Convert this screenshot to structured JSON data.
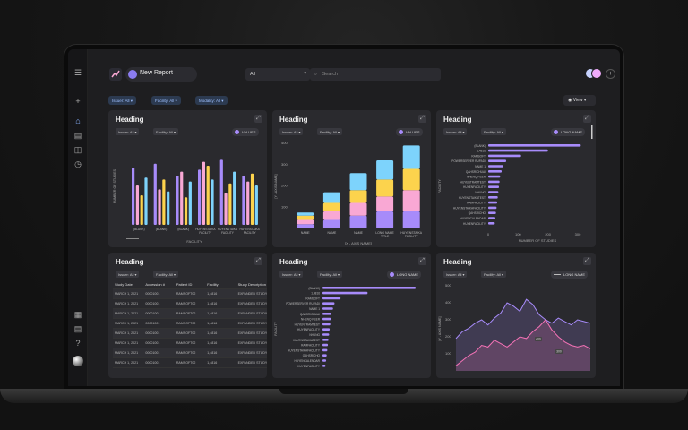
{
  "topbar": {
    "report_title": "New Report",
    "select_value": "All",
    "search_placeholder": "Search"
  },
  "filters": {
    "issuer": "Issuer: All",
    "facility": "Facility: All",
    "modality": "Modality: All",
    "view_label": "View"
  },
  "cards": [
    {
      "heading": "Heading",
      "issuer": "Issuer: All",
      "facility": "Facility: All",
      "legend": "VALUES"
    },
    {
      "heading": "Heading",
      "issuer": "Issuer: All",
      "facility": "Facility: All",
      "legend": "VALUES"
    },
    {
      "heading": "Heading",
      "issuer": "Issuer: All",
      "facility": "Facility: All",
      "legend": "LONG NAME"
    },
    {
      "heading": "Heading",
      "issuer": "Issuer: All",
      "facility": "Facility: All"
    },
    {
      "heading": "Heading",
      "issuer": "Issuer: All",
      "facility": "Facility: All",
      "legend": "LONG NAME"
    },
    {
      "heading": "Heading",
      "issuer": "Issuer: All",
      "facility": "Facility: All",
      "legend": "LONG NAME"
    }
  ],
  "colors": {
    "purple": "#a78bfa",
    "pink": "#f9a8d4",
    "yellow": "#fcd34d",
    "blue": "#7dd3fc",
    "accent": "#8b7cf0"
  },
  "chart_data": [
    {
      "type": "bar",
      "ylabel": "NUMBER OF STUDIES",
      "xlabel": "FACILITY",
      "ylim": [
        0,
        40
      ],
      "categories": [
        "(BLANK)",
        "(BLANK)",
        "(BLANK)",
        "HUYENSTAIKA FACILITY",
        "HUYENSTAIKA FACILITY",
        "HUYENSTAIKA FACILITY"
      ],
      "series": [
        {
          "values": [
            29,
            31,
            25,
            28,
            33,
            25
          ]
        },
        {
          "values": [
            20,
            18,
            27,
            32,
            16,
            22
          ]
        },
        {
          "values": [
            15,
            23,
            14,
            30,
            21,
            26
          ]
        },
        {
          "values": [
            24,
            17,
            22,
            23,
            27,
            20
          ]
        }
      ]
    },
    {
      "type": "bar",
      "ylabel": "[Y - AXIS NAME]",
      "xlabel": "[X - AXIS NAME]",
      "ylim": [
        0,
        400
      ],
      "yticks": [
        100,
        200,
        300,
        400
      ],
      "categories": [
        "NAME",
        "NAME",
        "NAME",
        "LONG NAME TITLE",
        "HUYENSTAIKA FACILITY"
      ],
      "stacked": true,
      "series": [
        {
          "values": [
            20,
            40,
            60,
            80,
            80
          ]
        },
        {
          "values": [
            20,
            40,
            60,
            70,
            100
          ]
        },
        {
          "values": [
            20,
            40,
            60,
            80,
            100
          ]
        },
        {
          "values": [
            15,
            50,
            80,
            90,
            110
          ]
        }
      ]
    },
    {
      "type": "bar",
      "orientation": "horizontal",
      "xlabel": "NUMBER OF STUDIES",
      "ylabel": "FACILITY",
      "xticks": [
        0,
        100,
        200,
        300
      ],
      "categories": [
        "(BLANK)",
        "1,4816",
        "RAMSOFT",
        "POWERSERVER RUPADI",
        "NAME 1",
        "QAHSRICHUAI",
        "NHENQ PEER",
        "HUYENTRAMTEST",
        "HUYENFACILITY",
        "NHUNG",
        "HUYENSTAIKATEST",
        "RAMFACILITY",
        "HUYENSTAIKAFACILITY",
        "QAHSRICHO",
        "HUYENCALENDAR",
        "HUYENFACILITY"
      ],
      "values": [
        310,
        200,
        110,
        60,
        50,
        45,
        40,
        38,
        36,
        34,
        32,
        30,
        28,
        26,
        24,
        22
      ]
    },
    {
      "type": "table",
      "columns": [
        "Study Date",
        "Accession #",
        "Patient ID",
        "Facility",
        "Study Description"
      ],
      "rows": [
        [
          "MARCH 1, 2021",
          "00001001",
          "RAMSOFT02",
          "1,4816",
          "EXPANDED STUDY TY"
        ],
        [
          "MARCH 1, 2021",
          "00001001",
          "RAMSOFT02",
          "1,4816",
          "EXPANDED STUDY TY"
        ],
        [
          "MARCH 1, 2021",
          "00001001",
          "RAMSOFT02",
          "1,4816",
          "EXPANDED STUDY TY"
        ],
        [
          "MARCH 1, 2021",
          "00001001",
          "RAMSOFT02",
          "1,4816",
          "EXPANDED STUDY TY"
        ],
        [
          "MARCH 1, 2021",
          "00001001",
          "RAMSOFT02",
          "1,4816",
          "EXPANDED STUDY TY"
        ],
        [
          "MARCH 1, 2021",
          "00001001",
          "RAMSOFT02",
          "1,4816",
          "EXPANDED STUDY TY"
        ],
        [
          "MARCH 1, 2021",
          "00001001",
          "RAMSOFT02",
          "1,4816",
          "EXPANDED STUDY TY"
        ],
        [
          "MARCH 1, 2021",
          "00001001",
          "RAMSOFT02",
          "1,4816",
          "EXPANDED STUDY TY"
        ]
      ]
    },
    {
      "type": "bar",
      "orientation": "horizontal",
      "ylabel": "FACILITY",
      "categories": [
        "(BLANK)",
        "1,4816",
        "RAMSOFT",
        "POWERSERVER RUPADI",
        "NAME 1",
        "QAHSRICHUAI",
        "NHENQ PEER",
        "HUYENTRAMTEST",
        "HUYENFACILITY",
        "NHUNG",
        "HUYENSTAIKATEST",
        "RAMFACILITY",
        "HUYENSTAIKAFACILITY",
        "QAHSRICHO",
        "HUYENCALENDAR",
        "HUYENFACILITY"
      ],
      "values": [
        310,
        150,
        60,
        40,
        35,
        30,
        28,
        26,
        24,
        22,
        20,
        18,
        16,
        14,
        12,
        10
      ]
    },
    {
      "type": "area",
      "ylabel": "[Y - AXIS NAME]",
      "yticks": [
        100,
        200,
        300,
        400,
        500
      ],
      "annotations": [
        "400",
        "300"
      ],
      "series": [
        {
          "values": [
            190,
            230,
            250,
            280,
            300,
            270,
            310,
            340,
            400,
            380,
            350,
            420,
            390,
            330,
            300,
            280,
            310,
            290,
            270,
            300,
            290,
            280
          ]
        },
        {
          "values": [
            30,
            60,
            90,
            110,
            150,
            140,
            180,
            160,
            140,
            170,
            200,
            190,
            230,
            260,
            300,
            240,
            200,
            170,
            150,
            140,
            150,
            130
          ]
        }
      ]
    }
  ]
}
